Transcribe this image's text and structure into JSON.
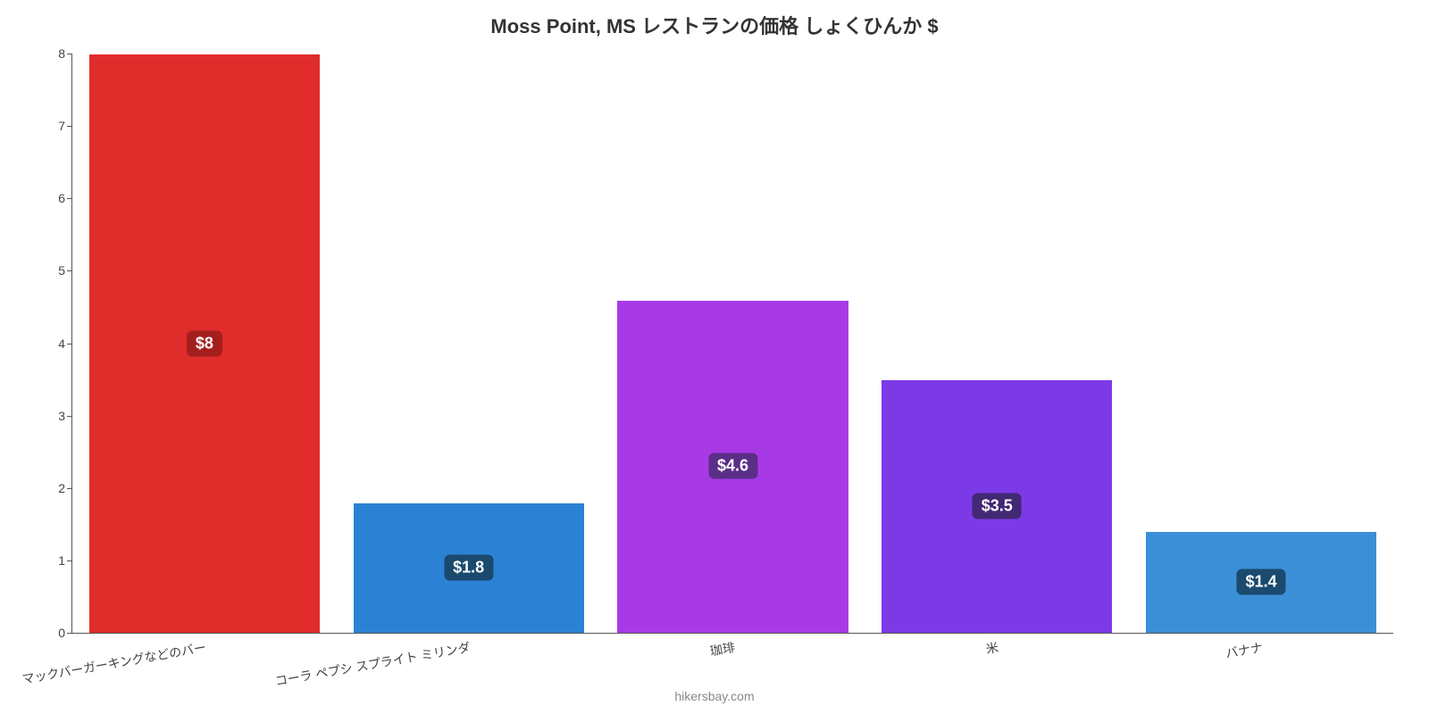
{
  "chart": {
    "type": "bar",
    "title": "Moss Point, MS レストランの価格 しょくひんか $",
    "title_fontsize": 22,
    "title_color": "#333333",
    "background_color": "#ffffff",
    "axis_color": "#555555",
    "tick_fontsize": 14,
    "tick_color": "#444444",
    "ylim": [
      0,
      8
    ],
    "ytick_step": 1,
    "bars": [
      {
        "category": "マックバーガーキングなどのバー",
        "value": 8,
        "display": "$8",
        "color": "#e12c2c",
        "label_bg": "#a51e1e"
      },
      {
        "category": "コーラ ペプシ スプライト ミリンダ",
        "value": 1.8,
        "display": "$1.8",
        "color": "#2b82d4",
        "label_bg": "#1a4a6e"
      },
      {
        "category": "珈琲",
        "value": 4.6,
        "display": "$4.6",
        "color": "#a83ae6",
        "label_bg": "#5b2e89"
      },
      {
        "category": "米",
        "value": 3.5,
        "display": "$3.5",
        "color": "#7c3ae6",
        "label_bg": "#432874"
      },
      {
        "category": "バナナ",
        "value": 1.4,
        "display": "$1.4",
        "color": "#3b8fd6",
        "label_bg": "#1a4a6e"
      }
    ],
    "bar_width_ratio": 0.88,
    "label_fontsize": 18,
    "xlabel_fontsize": 14,
    "xlabel_rotation_deg": -10,
    "credit": "hikersbay.com",
    "credit_fontsize": 14,
    "credit_color": "#888888"
  }
}
